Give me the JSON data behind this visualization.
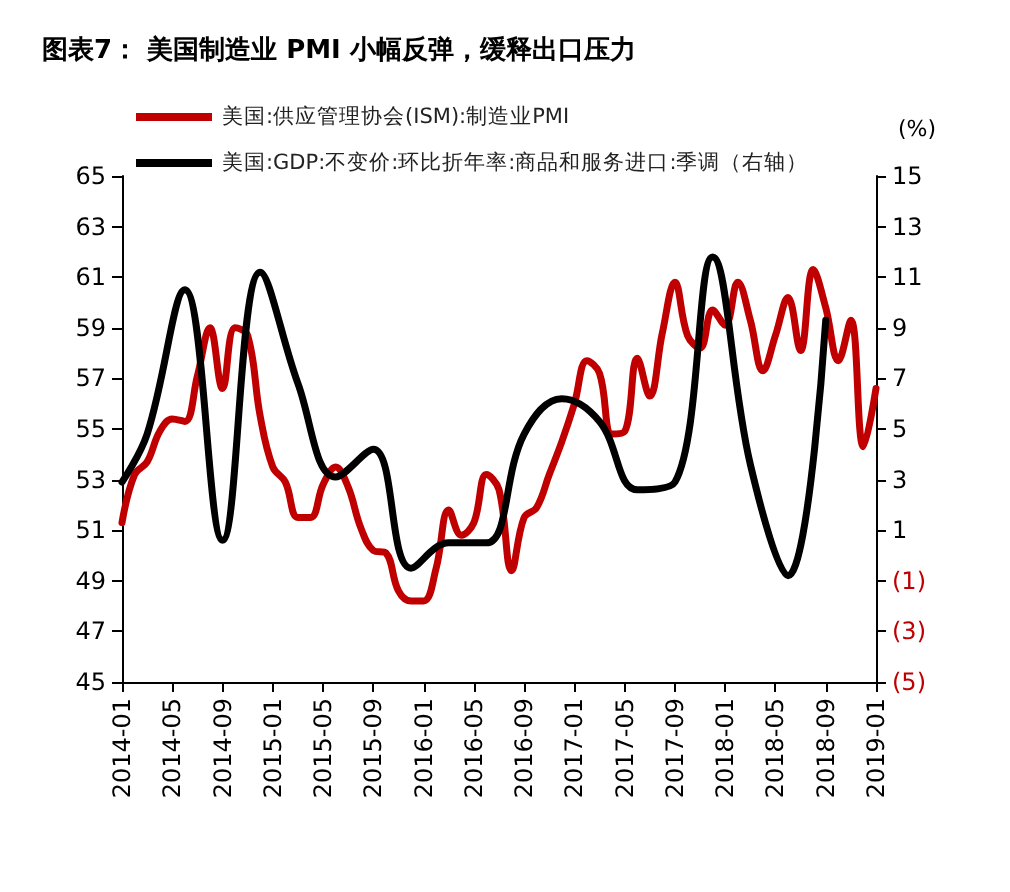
{
  "chart_data": {
    "type": "line",
    "title": "图表7： 美国制造业 PMI 小幅反弹，缓释出口压力",
    "y2label": "(%)",
    "categories": [
      "2014-01",
      null,
      null,
      null,
      "2014-05",
      null,
      null,
      null,
      "2014-09",
      null,
      null,
      null,
      "2015-01",
      null,
      null,
      null,
      "2015-05",
      null,
      null,
      null,
      "2015-09",
      null,
      null,
      null,
      "2016-01",
      null,
      null,
      null,
      "2016-05",
      null,
      null,
      null,
      "2016-09",
      null,
      null,
      null,
      "2017-01",
      null,
      null,
      null,
      "2017-05",
      null,
      null,
      null,
      "2017-09",
      null,
      null,
      null,
      "2018-01",
      null,
      null,
      null,
      "2018-05",
      null,
      null,
      null,
      "2018-09",
      null,
      null,
      null,
      "2019-01"
    ],
    "series": [
      {
        "name": "美国:供应管理协会(ISM):制造业PMI",
        "color": "#c00000",
        "values": [
          51.3,
          53.2,
          53.7,
          54.9,
          55.4,
          55.3,
          57.1,
          59.0,
          56.6,
          59.0,
          58.7,
          55.5,
          53.5,
          52.9,
          51.5,
          51.5,
          52.8,
          53.5,
          52.7,
          51.1,
          50.2,
          50.1,
          48.6,
          48.2,
          48.2,
          49.5,
          51.8,
          50.8,
          51.3,
          53.2,
          52.6,
          49.4,
          51.5,
          51.9,
          53.2,
          54.5,
          56.0,
          57.7,
          57.2,
          54.8,
          54.9,
          57.8,
          56.3,
          58.8,
          60.8,
          58.7,
          58.2,
          59.7,
          59.1,
          60.8,
          59.3,
          57.3,
          58.7,
          60.2,
          58.1,
          61.3,
          59.8,
          57.7,
          59.3,
          54.3,
          56.6
        ]
      },
      {
        "name": "美国:GDP:不变价:环比折年率:商品和服务进口:季调（右轴）",
        "color": "#000000",
        "axis": "y2",
        "values": [
          2.9,
          null,
          4.8,
          null,
          null,
          10.5,
          null,
          null,
          0.6,
          null,
          null,
          11.2,
          null,
          null,
          6.8,
          null,
          null,
          3.1,
          null,
          null,
          4.2,
          null,
          null,
          -0.5,
          null,
          null,
          0.5,
          null,
          null,
          0.5,
          null,
          null,
          4.8,
          null,
          null,
          6.2,
          null,
          null,
          5.3,
          null,
          null,
          2.6,
          null,
          null,
          2.9,
          null,
          null,
          11.8,
          null,
          null,
          3.6,
          null,
          null,
          -0.8,
          null,
          null,
          9.3,
          null,
          null,
          null,
          null
        ]
      }
    ],
    "ylim": [
      45,
      65
    ],
    "yticks": [
      45,
      47,
      49,
      51,
      53,
      55,
      57,
      59,
      61,
      63,
      65
    ],
    "y2lim": [
      -5,
      15
    ],
    "y2ticks": [
      {
        "value": -5,
        "label": "(5)"
      },
      {
        "value": -3,
        "label": "(3)"
      },
      {
        "value": -1,
        "label": "(1)"
      },
      1,
      3,
      5,
      7,
      9,
      11,
      13,
      15
    ],
    "legend": "top left",
    "grid": false,
    "marker": "none",
    "line_style": "solid"
  }
}
